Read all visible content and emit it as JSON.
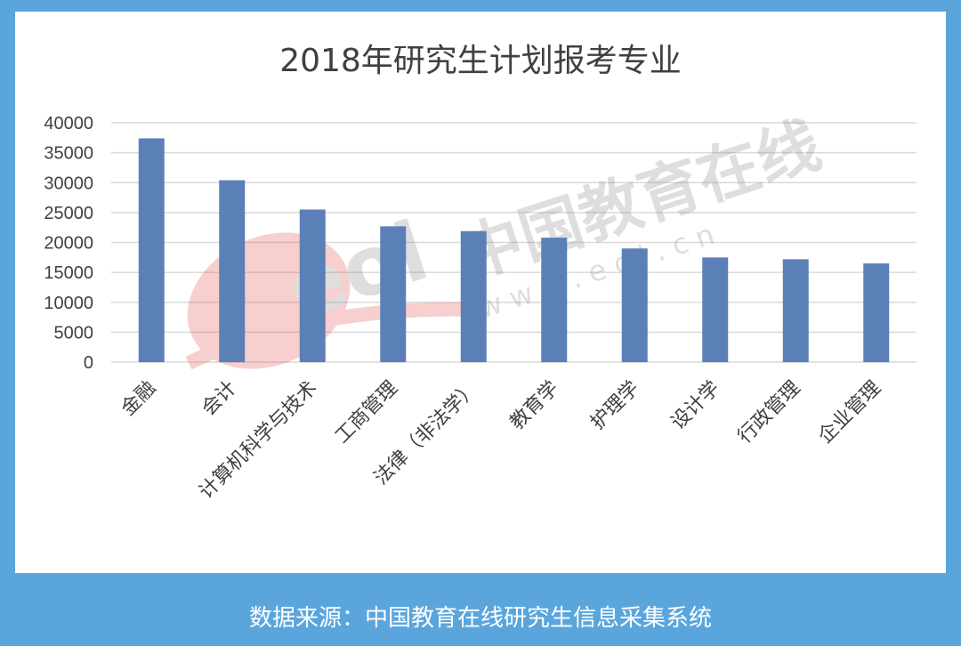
{
  "chart_data": {
    "type": "bar",
    "title": "2018年研究生计划报考专业",
    "categories": [
      "金融",
      "会计",
      "计算机科学与技术",
      "工商管理",
      "法律（非法学）",
      "教育学",
      "护理学",
      "设计学",
      "行政管理",
      "企业管理"
    ],
    "values": [
      37400,
      30400,
      25500,
      22700,
      21900,
      20800,
      19000,
      17500,
      17200,
      16500
    ],
    "ylim": [
      0,
      40000
    ],
    "yticks": [
      0,
      5000,
      10000,
      15000,
      20000,
      25000,
      30000,
      35000,
      40000
    ],
    "grid": true,
    "bar_color": "#5b80b8"
  },
  "watermark": {
    "brand": "中国教育在线",
    "url": "w w w . e o l . c n",
    "logo": "eol"
  },
  "footer": {
    "source": "数据来源：中国教育在线研究生信息采集系统"
  },
  "colors": {
    "background": "#5aa6dc",
    "panel": "#ffffff",
    "grid": "#d9d9d9",
    "text": "#404040"
  }
}
